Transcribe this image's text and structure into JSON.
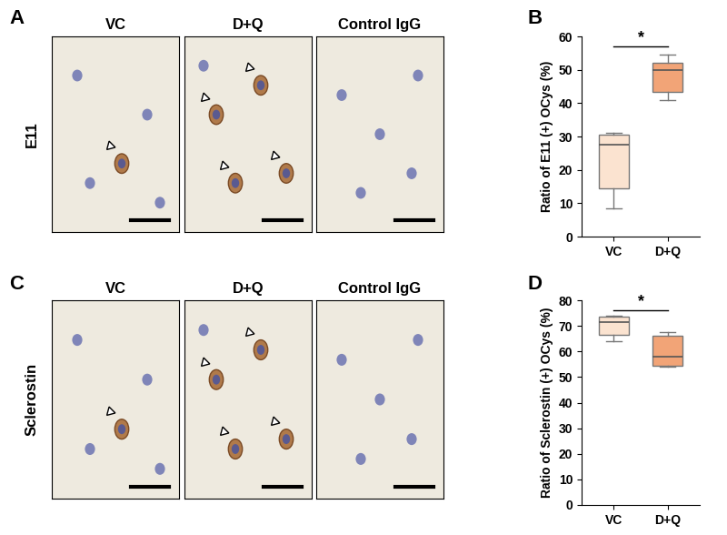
{
  "image_panels": [
    {
      "panel": "A",
      "row_label": "E11",
      "columns": [
        "VC",
        "D+Q",
        "Control IgG"
      ]
    },
    {
      "panel": "C",
      "row_label": "Sclerostin",
      "columns": [
        "VC",
        "D+Q",
        "Control IgG"
      ]
    }
  ],
  "chart_data": [
    {
      "panel": "B",
      "type": "box",
      "categories": [
        "VC",
        "D+Q"
      ],
      "boxes": [
        {
          "min": 8.5,
          "q1": 14.5,
          "median": 27.5,
          "q3": 30.5,
          "max": 31
        },
        {
          "min": 41,
          "q1": 43.5,
          "median": 50,
          "q3": 52,
          "max": 54.5
        }
      ],
      "colors": [
        "#fbe3d0",
        "#f2a477"
      ],
      "ylabel": "Ratio of E11 (+) OCys (%)",
      "ylim": [
        0,
        60
      ],
      "yticks": [
        0,
        10,
        20,
        30,
        40,
        50,
        60
      ],
      "significance": "*"
    },
    {
      "panel": "D",
      "type": "box",
      "categories": [
        "VC",
        "D+Q"
      ],
      "boxes": [
        {
          "min": 64,
          "q1": 66.5,
          "median": 71.5,
          "q3": 73.5,
          "max": 74
        },
        {
          "min": 54,
          "q1": 54.5,
          "median": 58,
          "q3": 66,
          "max": 67.5
        }
      ],
      "colors": [
        "#fbe3d0",
        "#f2a477"
      ],
      "ylabel": "Ratio of Sclerostin (+) OCys (%)",
      "ylim": [
        0,
        80
      ],
      "yticks": [
        0,
        10,
        20,
        30,
        40,
        50,
        60,
        70,
        80
      ],
      "significance": "*"
    }
  ]
}
